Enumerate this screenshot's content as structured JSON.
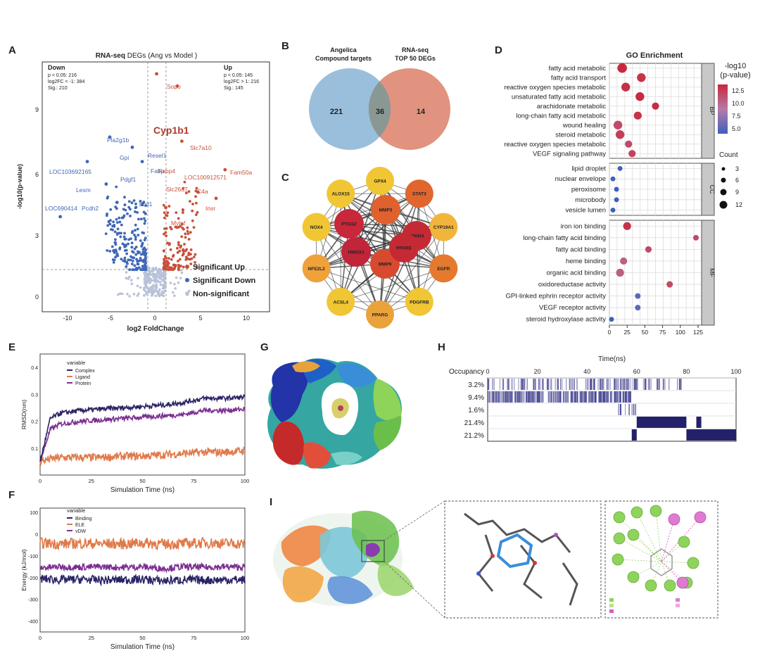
{
  "panels": {
    "a": "A",
    "b": "B",
    "c": "C",
    "d": "D",
    "e": "E",
    "f": "F",
    "g": "G",
    "h": "H",
    "i": "I"
  },
  "volcano": {
    "title_bold": "RNA-seq",
    "title_rest": " DEGs (Ang vs Model )",
    "down_title": "Down",
    "down_lines": [
      "p < 0.05: 216",
      "log2FC < -1: 384",
      "Sig.: 210"
    ],
    "up_title": "Up",
    "up_lines": [
      "p < 0.05: 145",
      "log2FC > 1: 216",
      "Sig.: 145"
    ],
    "xlabel": "log2  FoldChange",
    "ylabel": "-log10(p-value)",
    "xticks": [
      "-10",
      "-5",
      "0",
      "5",
      "10"
    ],
    "yticks": [
      "0",
      "3",
      "6",
      "9"
    ],
    "highlight": "Cyp1b1",
    "down_genes": [
      "Pla2g1b",
      "Gpi",
      "Resel1",
      "Pdgf1",
      "LOC103692165",
      "Lexm",
      "Pcdh2",
      "LOC690414",
      "Scd1",
      "Fabp"
    ],
    "up_genes": [
      "Sopo",
      "Slc7a10",
      "Fabp4",
      "LOC100912571",
      "Fam50a",
      "Slc26a7",
      "C4a",
      "Insr",
      "Mylpf"
    ],
    "legend": [
      "Significant Up",
      "Significant Down",
      "Non-significant"
    ],
    "colors": {
      "up": "#c8503a",
      "down": "#3f67b6",
      "ns": "#b8c2d8"
    }
  },
  "venn": {
    "left_title": [
      "Angelica",
      "Compound targets"
    ],
    "right_title": [
      "RNA-seq",
      "TOP 50 DEGs"
    ],
    "left_only": "221",
    "overlap": "36",
    "right_only": "14",
    "colors": {
      "left": "#8fb8d8",
      "right": "#dc8068"
    }
  },
  "network": {
    "outer": [
      "ALOX15",
      "GPX4",
      "STAT3",
      "CYP19A1",
      "EGFR",
      "PDGFRB",
      "PPARG",
      "ACSL4",
      "NFE2L2",
      "NOX4"
    ],
    "inner": [
      "PTGS2",
      "MMP3",
      "PPARA",
      "HMOX1",
      "MMP9",
      "PPARE"
    ]
  },
  "go": {
    "title": "GO Enrichment",
    "bp_terms": [
      "fatty acid metabolic",
      "fatty acid transport",
      "reactive oxygen species metabolic",
      "unsaturated fatty acid metabolic",
      "arachidonate metabolic",
      "long-chain fatty acid metabolic",
      "wound healing",
      "steroid metabolic",
      "reactive oxygen species metabolic",
      "VEGF signaling pathway"
    ],
    "cc_terms": [
      "lipid droplet",
      "nuclear envelope",
      "peroxisome",
      "microbody",
      "vesicle lumen"
    ],
    "mf_terms": [
      "iron ion binding",
      "long-chain fatty acid binding",
      "fatty acid binding",
      "heme binding",
      "organic acid binding",
      "oxidoreductase activity",
      "GPI-linked ephrin receptor activity",
      "VEGF receptor activity",
      "steroid hydroxylase activity"
    ],
    "strips": [
      "BP",
      "CC",
      "MF"
    ],
    "xticks": [
      "0",
      "25",
      "50",
      "75",
      "100",
      "125"
    ],
    "legend_title": [
      "-log10",
      "(p-value)"
    ],
    "legend_values": [
      "12.5",
      "10.0",
      "7.5",
      "5.0"
    ],
    "count_title": "Count",
    "count_values": [
      "3",
      "6",
      "9",
      "12"
    ]
  },
  "chart_data": [
    {
      "type": "scatter",
      "title": "RNA-seq DEGs (Ang vs Model )",
      "xlabel": "log2  FoldChange",
      "ylabel": "-log10(p-value)",
      "xlim": [
        -12,
        11
      ],
      "ylim": [
        0,
        11
      ],
      "labeled_points": [
        {
          "name": "Cyp1b1",
          "x": 0.2,
          "y": 10.9
        },
        {
          "name": "Sopo",
          "x": 2.5,
          "y": 10.3
        },
        {
          "name": "Pla2g1b",
          "x": -5.0,
          "y": 7.8
        },
        {
          "name": "Gpi",
          "x": -2.5,
          "y": 7.3
        },
        {
          "name": "Resel1",
          "x": -1.4,
          "y": 6.6
        },
        {
          "name": "LOC103692165",
          "x": -7.5,
          "y": 6.6
        },
        {
          "name": "Lexm",
          "x": -5.4,
          "y": 5.5
        },
        {
          "name": "LOC690414",
          "x": -10.5,
          "y": 3.9
        },
        {
          "name": "Pcdh2",
          "x": -4.2,
          "y": 4.6
        },
        {
          "name": "Slc7a10",
          "x": 3.0,
          "y": 7.6
        },
        {
          "name": "Fam50a",
          "x": 7.8,
          "y": 6.2
        },
        {
          "name": "C4a",
          "x": 4.8,
          "y": 5.1
        },
        {
          "name": "Insr",
          "x": 6.8,
          "y": 4.8
        }
      ]
    },
    {
      "type": "scatter",
      "title": "GO Enrichment",
      "xlim": [
        0,
        125
      ],
      "series": [
        {
          "name": "BP",
          "categories": [
            "fatty acid metabolic",
            "fatty acid transport",
            "reactive oxygen species metabolic",
            "unsaturated fatty acid metabolic",
            "arachidonate metabolic",
            "long-chain fatty acid metabolic",
            "wound healing",
            "steroid metabolic",
            "reactive oxygen species metabolic",
            "VEGF signaling pathway"
          ],
          "values": [
            18,
            45,
            23,
            43,
            65,
            40,
            12,
            15,
            27,
            32
          ],
          "pvalue": [
            12.5,
            12.0,
            12.2,
            12.4,
            12.3,
            12.0,
            11.0,
            11.5,
            11.0,
            11.3
          ],
          "count": [
            9,
            8,
            8,
            8,
            6,
            7,
            8,
            8,
            6,
            6
          ]
        },
        {
          "name": "CC",
          "categories": [
            "lipid droplet",
            "nuclear envelope",
            "peroxisome",
            "microbody",
            "vesicle lumen"
          ],
          "values": [
            15,
            5,
            10,
            10,
            5
          ],
          "pvalue": [
            5,
            5,
            5,
            5,
            5
          ],
          "count": [
            3,
            3,
            3,
            3,
            3
          ]
        },
        {
          "name": "MF",
          "categories": [
            "iron ion binding",
            "long-chain fatty acid binding",
            "fatty acid binding",
            "heme binding",
            "organic acid binding",
            "oxidoreductase activity",
            "GPI-linked ephrin receptor activity",
            "VEGF receptor activity",
            "steroid hydroxylase activity"
          ],
          "values": [
            25,
            122,
            55,
            20,
            15,
            85,
            40,
            40,
            3
          ],
          "pvalue": [
            12,
            11,
            11,
            10,
            10,
            11,
            6,
            6,
            5
          ],
          "count": [
            7,
            4,
            5,
            6,
            7,
            5,
            4,
            4,
            3
          ]
        }
      ]
    },
    {
      "type": "line",
      "xlabel": "Simulation Time (ns)",
      "ylabel": "RMSD(nm)",
      "xlim": [
        0,
        100
      ],
      "ylim": [
        0,
        0.45
      ],
      "x": [
        0,
        5,
        10,
        20,
        30,
        40,
        50,
        60,
        70,
        80,
        90,
        100
      ],
      "series": [
        {
          "name": "Complex",
          "values": [
            0.05,
            0.21,
            0.23,
            0.24,
            0.245,
            0.25,
            0.255,
            0.26,
            0.27,
            0.285,
            0.285,
            0.29
          ],
          "color": "#2a2466"
        },
        {
          "name": "Ligand",
          "values": [
            0.05,
            0.06,
            0.065,
            0.065,
            0.065,
            0.07,
            0.07,
            0.075,
            0.08,
            0.085,
            0.085,
            0.09
          ],
          "color": "#e07a4a"
        },
        {
          "name": "Protein",
          "values": [
            0.05,
            0.17,
            0.19,
            0.2,
            0.205,
            0.21,
            0.215,
            0.22,
            0.225,
            0.24,
            0.24,
            0.245
          ],
          "color": "#7b2f91"
        }
      ],
      "ticks_y": [
        "0.1",
        "0.2",
        "0.3",
        "0.4"
      ],
      "ticks_x": [
        "0",
        "25",
        "50",
        "75",
        "100"
      ],
      "legend_title": "variable"
    },
    {
      "type": "line",
      "xlabel": "Simulation Time (ns)",
      "ylabel": "Energy (kJ/mol)",
      "xlim": [
        0,
        100
      ],
      "ylim": [
        -450,
        120
      ],
      "x": [
        0,
        10,
        20,
        30,
        40,
        50,
        60,
        70,
        80,
        90,
        100
      ],
      "series": [
        {
          "name": "Binding",
          "values": [
            -205,
            -210,
            -208,
            -212,
            -210,
            -208,
            -215,
            -210,
            -212,
            -210,
            -210
          ],
          "color": "#2a2466"
        },
        {
          "name": "ELE",
          "values": [
            -40,
            -45,
            -42,
            -44,
            -45,
            -40,
            -46,
            -44,
            -40,
            -42,
            -45
          ],
          "color": "#e07a4a"
        },
        {
          "name": "vDW",
          "values": [
            -155,
            -150,
            -152,
            -150,
            -153,
            -150,
            -158,
            -150,
            -152,
            -150,
            -152
          ],
          "color": "#7b2f91"
        }
      ],
      "ticks_y": [
        "100",
        "0",
        "-100",
        "-200",
        "-300",
        "-400"
      ],
      "ticks_x": [
        "0",
        "25",
        "50",
        "75",
        "100"
      ],
      "legend_title": "variable"
    },
    {
      "type": "heatmap",
      "title": "Time(ns)",
      "row_header": "Occupancy",
      "rows": [
        "3.2%",
        "9.4%",
        "1.6%",
        "21.4%",
        "21.2%"
      ],
      "ticks_x": [
        "0",
        "20",
        "40",
        "60",
        "80",
        "100"
      ],
      "xlim": [
        0,
        100
      ],
      "segments": [
        {
          "row": 0,
          "start": 0,
          "end": 80,
          "density": 0.3
        },
        {
          "row": 1,
          "start": 0,
          "end": 58,
          "density": 0.6
        },
        {
          "row": 2,
          "start": 50,
          "end": 60,
          "density": 0.2
        },
        {
          "row": 3,
          "start": 60,
          "end": 80,
          "density": 1
        },
        {
          "row": 3,
          "start": 84,
          "end": 86,
          "density": 1
        },
        {
          "row": 4,
          "start": 58,
          "end": 60,
          "density": 1
        },
        {
          "row": 4,
          "start": 80,
          "end": 100,
          "density": 1
        }
      ]
    }
  ]
}
